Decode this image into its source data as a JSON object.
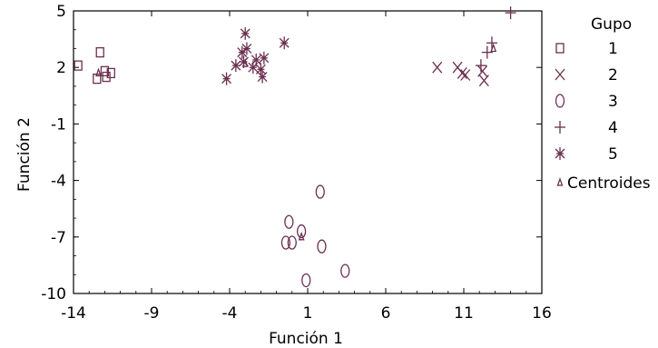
{
  "chart_data": {
    "type": "scatter",
    "title": "",
    "xlabel": "Función 1",
    "ylabel": "Función 2",
    "xlim": [
      -14,
      16
    ],
    "ylim": [
      -10,
      5
    ],
    "xticks": [
      -14,
      -9,
      -4,
      1,
      6,
      11,
      16
    ],
    "xtick_labels": [
      "-14",
      "-9",
      "-4",
      "1",
      "6",
      "11",
      "16"
    ],
    "yticks": [
      5,
      2,
      -1,
      -4,
      -7,
      -10
    ],
    "ytick_labels": [
      "5",
      "2",
      "-1",
      "-4",
      "-7",
      "-10"
    ],
    "grid": false,
    "legend_title": "Gupo",
    "legend_position": "right",
    "marker_color": "#6b2f4f",
    "series": [
      {
        "name": "1",
        "marker": "square",
        "points": [
          [
            -13.7,
            2.1
          ],
          [
            -12.3,
            2.8
          ],
          [
            -12.0,
            1.8
          ],
          [
            -12.5,
            1.4
          ],
          [
            -11.9,
            1.5
          ],
          [
            -11.6,
            1.7
          ]
        ]
      },
      {
        "name": "2",
        "marker": "x",
        "points": [
          [
            9.3,
            2.0
          ],
          [
            10.6,
            2.0
          ],
          [
            10.9,
            1.7
          ],
          [
            11.1,
            1.6
          ],
          [
            12.2,
            1.8
          ],
          [
            12.3,
            1.3
          ]
        ]
      },
      {
        "name": "3",
        "marker": "ellipse",
        "points": [
          [
            1.8,
            -4.6
          ],
          [
            -0.2,
            -6.2
          ],
          [
            0.6,
            -6.7
          ],
          [
            -0.4,
            -7.3
          ],
          [
            0.0,
            -7.3
          ],
          [
            1.9,
            -7.5
          ],
          [
            3.4,
            -8.8
          ],
          [
            0.9,
            -9.3
          ]
        ]
      },
      {
        "name": "4",
        "marker": "plus",
        "points": [
          [
            14.0,
            4.9
          ],
          [
            12.8,
            3.3
          ],
          [
            12.5,
            2.8
          ],
          [
            12.1,
            2.1
          ]
        ]
      },
      {
        "name": "5",
        "marker": "asterisk",
        "points": [
          [
            -3.0,
            3.8
          ],
          [
            -3.2,
            2.8
          ],
          [
            -2.9,
            3.0
          ],
          [
            -2.3,
            2.4
          ],
          [
            -1.8,
            2.5
          ],
          [
            -3.1,
            2.3
          ],
          [
            -2.5,
            2.0
          ],
          [
            -2.0,
            1.9
          ],
          [
            -3.6,
            2.1
          ],
          [
            -1.9,
            1.5
          ],
          [
            -4.2,
            1.4
          ],
          [
            -0.5,
            3.3
          ]
        ]
      },
      {
        "name": "Centroides",
        "marker": "triangle",
        "points": [
          [
            -12.4,
            1.7
          ],
          [
            12.9,
            3.0
          ],
          [
            0.6,
            -7.0
          ],
          [
            -3.0,
            2.2
          ]
        ]
      }
    ]
  }
}
